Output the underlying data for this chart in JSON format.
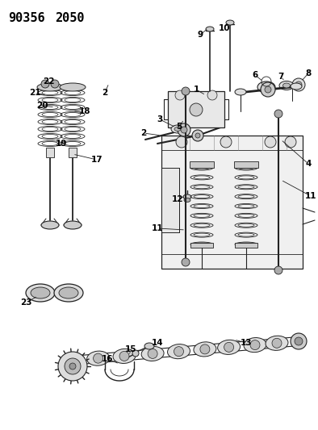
{
  "title": "90356 2050",
  "bg_color": "#ffffff",
  "fig_width": 3.94,
  "fig_height": 5.33,
  "dpi": 100
}
